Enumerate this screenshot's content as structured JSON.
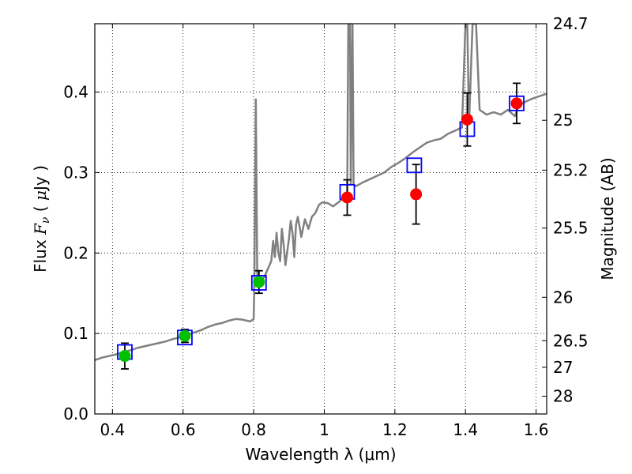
{
  "chart_data": {
    "type": "scatter",
    "xlabel": "Wavelength  λ (μm)",
    "ylabel": "Flux  F_ν  ( μJy )",
    "ylabel_right": "Magnitude (AB)",
    "xlim": [
      0.35,
      1.63
    ],
    "ylim": [
      0.0,
      0.485
    ],
    "grid": true,
    "x_ticks": [
      0.4,
      0.6,
      0.8,
      1.0,
      1.2,
      1.4,
      1.6
    ],
    "x_tick_labels": [
      "0.4",
      "0.6",
      "0.8",
      "1",
      "1.2",
      "1.4",
      "1.6"
    ],
    "y_ticks": [
      0.0,
      0.1,
      0.2,
      0.3,
      0.4
    ],
    "y_tick_labels": [
      "0.0",
      "0.1",
      "0.2",
      "0.3",
      "0.4"
    ],
    "right_ticks": [
      {
        "label": "24.7",
        "flux": 0.485
      },
      {
        "label": "25",
        "flux": 0.365
      },
      {
        "label": "25.2",
        "flux": 0.303
      },
      {
        "label": "25.5",
        "flux": 0.231
      },
      {
        "label": "26",
        "flux": 0.145
      },
      {
        "label": "26.5",
        "flux": 0.091
      },
      {
        "label": "27",
        "flux": 0.058
      },
      {
        "label": "28",
        "flux": 0.022
      }
    ],
    "colors": {
      "model": "#808080",
      "model_points": "#0000ff",
      "green_points": "#00c000",
      "red_points": "#ff0000",
      "errorbar": "#000000",
      "grid": "#000000"
    },
    "series": [
      {
        "kind": "spectrum",
        "points": [
          [
            0.35,
            0.067
          ],
          [
            0.37,
            0.07
          ],
          [
            0.39,
            0.072
          ],
          [
            0.41,
            0.074
          ],
          [
            0.43,
            0.077
          ],
          [
            0.45,
            0.079
          ],
          [
            0.47,
            0.082
          ],
          [
            0.49,
            0.084
          ],
          [
            0.51,
            0.086
          ],
          [
            0.53,
            0.088
          ],
          [
            0.55,
            0.09
          ],
          [
            0.57,
            0.093
          ],
          [
            0.59,
            0.095
          ],
          [
            0.61,
            0.098
          ],
          [
            0.63,
            0.101
          ],
          [
            0.65,
            0.104
          ],
          [
            0.67,
            0.108
          ],
          [
            0.69,
            0.111
          ],
          [
            0.71,
            0.113
          ],
          [
            0.73,
            0.116
          ],
          [
            0.75,
            0.118
          ],
          [
            0.77,
            0.117
          ],
          [
            0.79,
            0.115
          ],
          [
            0.8,
            0.118
          ],
          [
            0.802,
            0.165
          ],
          [
            0.806,
            0.391
          ],
          [
            0.81,
            0.175
          ],
          [
            0.815,
            0.165
          ],
          [
            0.83,
            0.17
          ],
          [
            0.85,
            0.19
          ],
          [
            0.855,
            0.215
          ],
          [
            0.86,
            0.195
          ],
          [
            0.865,
            0.225
          ],
          [
            0.87,
            0.2
          ],
          [
            0.875,
            0.19
          ],
          [
            0.88,
            0.23
          ],
          [
            0.885,
            0.21
          ],
          [
            0.89,
            0.185
          ],
          [
            0.9,
            0.218
          ],
          [
            0.905,
            0.24
          ],
          [
            0.91,
            0.225
          ],
          [
            0.915,
            0.195
          ],
          [
            0.92,
            0.235
          ],
          [
            0.925,
            0.245
          ],
          [
            0.935,
            0.22
          ],
          [
            0.945,
            0.242
          ],
          [
            0.955,
            0.23
          ],
          [
            0.965,
            0.245
          ],
          [
            0.975,
            0.25
          ],
          [
            0.985,
            0.26
          ],
          [
            0.995,
            0.263
          ],
          [
            1.01,
            0.262
          ],
          [
            1.025,
            0.258
          ],
          [
            1.04,
            0.263
          ],
          [
            1.055,
            0.268
          ],
          [
            1.065,
            0.272
          ],
          [
            1.068,
            0.485
          ],
          [
            1.073,
            0.485
          ],
          [
            1.075,
            0.285
          ],
          [
            1.08,
            0.485
          ],
          [
            1.083,
            0.285
          ],
          [
            1.09,
            0.283
          ],
          [
            1.11,
            0.288
          ],
          [
            1.13,
            0.292
          ],
          [
            1.15,
            0.296
          ],
          [
            1.17,
            0.3
          ],
          [
            1.19,
            0.307
          ],
          [
            1.21,
            0.312
          ],
          [
            1.23,
            0.318
          ],
          [
            1.25,
            0.325
          ],
          [
            1.27,
            0.331
          ],
          [
            1.29,
            0.337
          ],
          [
            1.31,
            0.34
          ],
          [
            1.33,
            0.342
          ],
          [
            1.35,
            0.348
          ],
          [
            1.37,
            0.352
          ],
          [
            1.39,
            0.356
          ],
          [
            1.4,
            0.485
          ],
          [
            1.405,
            0.485
          ],
          [
            1.41,
            0.36
          ],
          [
            1.42,
            0.485
          ],
          [
            1.43,
            0.485
          ],
          [
            1.44,
            0.378
          ],
          [
            1.46,
            0.372
          ],
          [
            1.48,
            0.375
          ],
          [
            1.5,
            0.372
          ],
          [
            1.52,
            0.378
          ],
          [
            1.54,
            0.37
          ],
          [
            1.55,
            0.383
          ],
          [
            1.57,
            0.388
          ],
          [
            1.59,
            0.392
          ],
          [
            1.61,
            0.395
          ],
          [
            1.63,
            0.398
          ]
        ]
      },
      {
        "kind": "model-points",
        "x": [
          0.435,
          0.605,
          0.815,
          1.065,
          1.255,
          1.405,
          1.545
        ],
        "y": [
          0.077,
          0.095,
          0.163,
          0.276,
          0.309,
          0.354,
          0.386
        ]
      },
      {
        "kind": "green-points",
        "x": [
          0.435,
          0.605,
          0.815
        ],
        "y": [
          0.072,
          0.097,
          0.164
        ],
        "err": [
          0.016,
          0.008,
          0.014
        ]
      },
      {
        "kind": "red-points",
        "x": [
          1.065,
          1.26,
          1.405,
          1.545
        ],
        "y": [
          0.269,
          0.273,
          0.366,
          0.386
        ],
        "err": [
          0.022,
          0.037,
          0.033,
          0.025
        ]
      }
    ]
  }
}
